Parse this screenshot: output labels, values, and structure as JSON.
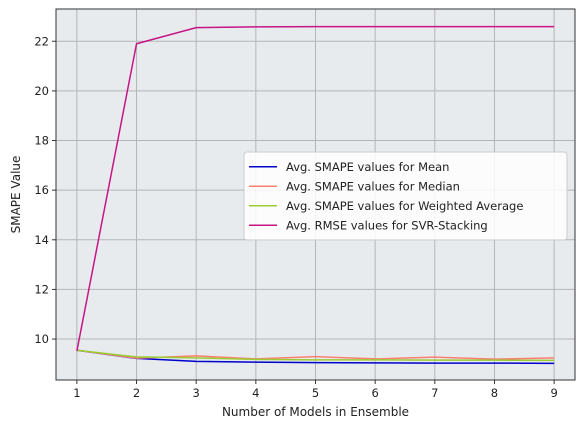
{
  "chart_data": {
    "type": "line",
    "title": "",
    "xlabel": "Number of Models in Ensemble",
    "ylabel": "SMAPE Value",
    "x": [
      1,
      2,
      3,
      4,
      5,
      6,
      7,
      8,
      9
    ],
    "xlim": [
      0.65,
      9.35
    ],
    "ylim": [
      8.35,
      23.3
    ],
    "xticks": [
      1,
      2,
      3,
      4,
      5,
      6,
      7,
      8,
      9
    ],
    "yticks": [
      10,
      12,
      14,
      16,
      18,
      20,
      22
    ],
    "grid": true,
    "background_color": "#e8ebee",
    "grid_color": "#b3b6b9",
    "legend": {
      "position": "center-right"
    },
    "series": [
      {
        "name": "Avg. SMAPE values for Mean",
        "color": "#0000cd",
        "values": [
          9.55,
          9.22,
          9.1,
          9.07,
          9.05,
          9.04,
          9.03,
          9.03,
          9.02
        ]
      },
      {
        "name": "Avg. SMAPE values for Median",
        "color": "#fa8072",
        "values": [
          9.55,
          9.23,
          9.32,
          9.2,
          9.29,
          9.2,
          9.27,
          9.19,
          9.24
        ]
      },
      {
        "name": "Avg. SMAPE values for Weighted Average",
        "color": "#9acd32",
        "values": [
          9.55,
          9.28,
          9.24,
          9.18,
          9.16,
          9.16,
          9.15,
          9.15,
          9.14
        ]
      },
      {
        "name": "Avg. RMSE values for SVR-Stacking",
        "color": "#c71585",
        "values": [
          9.52,
          21.9,
          22.55,
          22.58,
          22.59,
          22.59,
          22.59,
          22.59,
          22.59
        ]
      }
    ]
  }
}
